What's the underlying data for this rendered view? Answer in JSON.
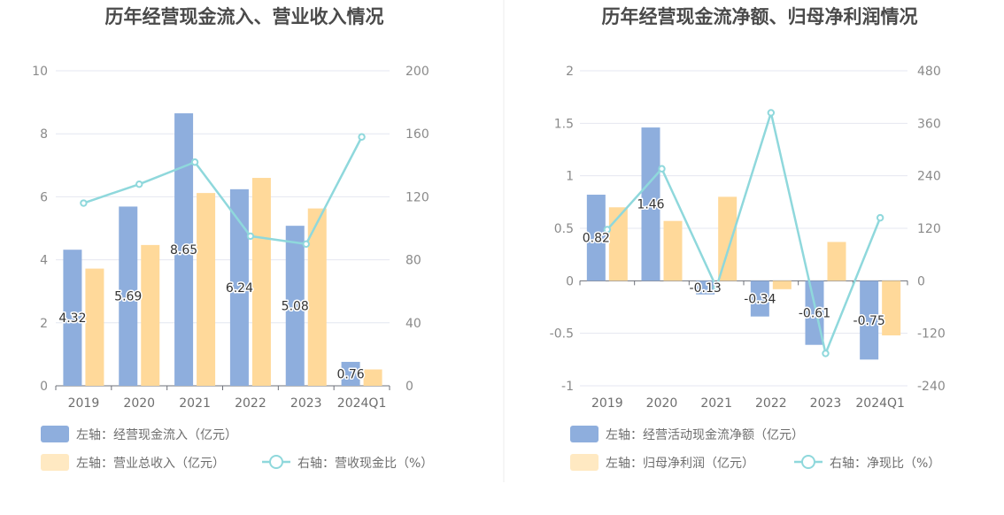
{
  "chart_data": [
    {
      "type": "bar",
      "title": "历年经营现金流入、营业收入情况",
      "categories": [
        "2019",
        "2020",
        "2021",
        "2022",
        "2023",
        "2024Q1"
      ],
      "left_axis": {
        "ylim": [
          0,
          10
        ],
        "ticks": [
          "0",
          "2",
          "4",
          "6",
          "8",
          "10"
        ]
      },
      "right_axis": {
        "ylim": [
          0,
          200
        ],
        "ticks": [
          "0",
          "40",
          "80",
          "120",
          "160",
          "200"
        ]
      },
      "series": [
        {
          "name": "左轴：经营现金流入（亿元）",
          "axis": "left",
          "kind": "bar",
          "color": "#8eaedd",
          "values": [
            4.32,
            5.69,
            8.65,
            6.24,
            5.08,
            0.76
          ],
          "labels": [
            "4.32",
            "5.69",
            "8.65",
            "6.24",
            "5.08",
            "0.76"
          ]
        },
        {
          "name": "左轴：营业总收入（亿元）",
          "axis": "left",
          "kind": "bar",
          "color": "#ffd99a",
          "values": [
            3.72,
            4.47,
            6.12,
            6.6,
            5.63,
            0.52
          ]
        },
        {
          "name": "右轴：营收现金比（%）",
          "axis": "right",
          "kind": "line",
          "color": "#8fd8dc",
          "values": [
            116,
            128,
            142,
            95,
            90,
            158
          ]
        }
      ]
    },
    {
      "type": "bar",
      "title": "历年经营现金流净额、归母净利润情况",
      "categories": [
        "2019",
        "2020",
        "2021",
        "2022",
        "2023",
        "2024Q1"
      ],
      "left_axis": {
        "ylim": [
          -1,
          2
        ],
        "ticks": [
          "-1",
          "-0.5",
          "0",
          "0.5",
          "1",
          "1.5",
          "2"
        ]
      },
      "right_axis": {
        "ylim": [
          -240,
          480
        ],
        "ticks": [
          "-240",
          "-120",
          "0",
          "120",
          "240",
          "360",
          "480"
        ]
      },
      "series": [
        {
          "name": "左轴：经营活动现金流净额（亿元）",
          "axis": "left",
          "kind": "bar",
          "color": "#8eaedd",
          "values": [
            0.82,
            1.46,
            -0.13,
            -0.34,
            -0.61,
            -0.75
          ],
          "labels": [
            "0.82",
            "1.46",
            "-0.13",
            "-0.34",
            "-0.61",
            "-0.75"
          ]
        },
        {
          "name": "左轴：归母净利润（亿元）",
          "axis": "left",
          "kind": "bar",
          "color": "#ffd99a",
          "values": [
            0.7,
            0.57,
            0.8,
            -0.08,
            0.37,
            -0.52
          ]
        },
        {
          "name": "右轴：净现比（%）",
          "axis": "right",
          "kind": "line",
          "color": "#8fd8dc",
          "values": [
            117,
            256,
            -15,
            384,
            -166,
            144
          ]
        }
      ]
    }
  ]
}
